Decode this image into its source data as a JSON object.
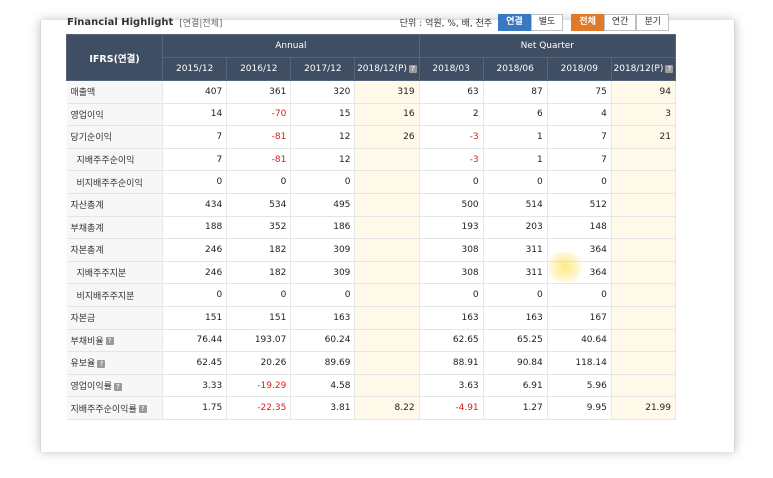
{
  "header": {
    "title": "Financial Highlight",
    "subtitle": "[연결|전체]",
    "unit_label": "단위 : 억원, %, 배, 천주",
    "consolidation_toggle": [
      "연결",
      "별도"
    ],
    "period_toggle": [
      "전체",
      "연간",
      "분기"
    ]
  },
  "table": {
    "corner_label": "IFRS(연결)",
    "groups": {
      "annual": "Annual",
      "quarter": "Net Quarter"
    },
    "columns": [
      "2015/12",
      "2016/12",
      "2017/12",
      "2018/12(P)",
      "2018/03",
      "2018/06",
      "2018/09",
      "2018/12(P)"
    ],
    "rows": [
      {
        "label": "매출액",
        "values": [
          "407",
          "361",
          "320",
          "319",
          "63",
          "87",
          "75",
          "94"
        ]
      },
      {
        "label": "영업이익",
        "values": [
          "14",
          "-70",
          "15",
          "16",
          "2",
          "6",
          "4",
          "3"
        ]
      },
      {
        "label": "당기순이익",
        "values": [
          "7",
          "-81",
          "12",
          "26",
          "-3",
          "1",
          "7",
          "21"
        ]
      },
      {
        "label": "지배주주순이익",
        "values": [
          "7",
          "-81",
          "12",
          "",
          "-3",
          "1",
          "7",
          ""
        ]
      },
      {
        "label": "비지배주주순이익",
        "values": [
          "0",
          "0",
          "0",
          "",
          "0",
          "0",
          "0",
          ""
        ]
      },
      {
        "label": "자산총계",
        "values": [
          "434",
          "534",
          "495",
          "",
          "500",
          "514",
          "512",
          ""
        ]
      },
      {
        "label": "부채총계",
        "values": [
          "188",
          "352",
          "186",
          "",
          "193",
          "203",
          "148",
          ""
        ]
      },
      {
        "label": "자본총계",
        "values": [
          "246",
          "182",
          "309",
          "",
          "308",
          "311",
          "364",
          ""
        ]
      },
      {
        "label": "지배주주지분",
        "values": [
          "246",
          "182",
          "309",
          "",
          "308",
          "311",
          "364",
          ""
        ]
      },
      {
        "label": "비지배주주지분",
        "values": [
          "0",
          "0",
          "0",
          "",
          "0",
          "0",
          "0",
          ""
        ]
      },
      {
        "label": "자본금",
        "values": [
          "151",
          "151",
          "163",
          "",
          "163",
          "163",
          "167",
          ""
        ]
      },
      {
        "label": "부채비율",
        "values": [
          "76.44",
          "193.07",
          "60.24",
          "",
          "62.65",
          "65.25",
          "40.64",
          ""
        ]
      },
      {
        "label": "유보율",
        "values": [
          "62.45",
          "20.26",
          "89.69",
          "",
          "88.91",
          "90.84",
          "118.14",
          ""
        ]
      },
      {
        "label": "영업이익률",
        "values": [
          "3.33",
          "-19.29",
          "4.58",
          "",
          "3.63",
          "6.91",
          "5.96",
          ""
        ]
      },
      {
        "label": "지배주주순이익률",
        "values": [
          "1.75",
          "-22.35",
          "3.81",
          "8.22",
          "-4.91",
          "1.27",
          "9.95",
          "21.99"
        ]
      }
    ]
  },
  "colors": {
    "header_bg": "#3f4e63",
    "estimate_bg": "#fff9ea",
    "negative": "#d21f1f",
    "toggle_blue": "#3a78c2",
    "toggle_orange": "#e07a28"
  }
}
